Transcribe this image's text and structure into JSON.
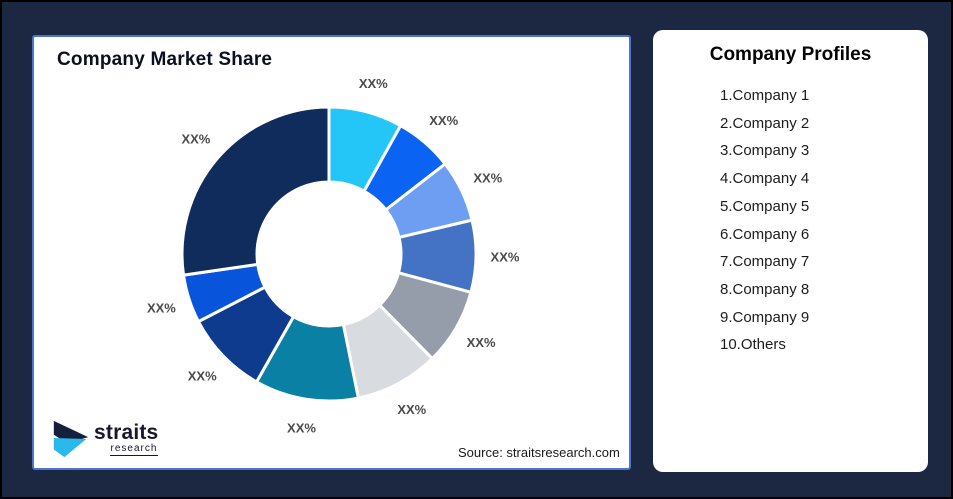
{
  "page": {
    "background_color": "#1C2742",
    "outer_border_color": "#000000"
  },
  "left_card": {
    "title": "Company Market Share",
    "border_color": "#4A74CE",
    "source_text": "Source: straitsresearch.com",
    "logo": {
      "text": "straits",
      "subtext": "research",
      "icon": "straits-arrow-icon",
      "navy_color": "#15203F",
      "cyan_color": "#29B9EA"
    }
  },
  "right_card": {
    "title": "Company Profiles",
    "items": [
      "1.Company 1",
      "2.Company 2",
      "3.Company 3",
      "4.Company 4",
      "5.Company 5",
      "6.Company 6",
      "7.Company 7",
      "8.Company 8",
      "9.Company 9",
      "10.Others"
    ]
  },
  "chart_data": {
    "type": "pie",
    "subtype": "donut",
    "title": "Company Market Share",
    "legend_position": "none",
    "labels_position": "outside",
    "label_color": "#4A4A4A",
    "start_angle_deg": 0,
    "clockwise": true,
    "inner_radius_ratio": 0.49,
    "slices": [
      {
        "label": "XX%",
        "estimated_percent": 8.1,
        "color": "#24C6F7"
      },
      {
        "label": "XX%",
        "estimated_percent": 6.4,
        "color": "#0B63F3"
      },
      {
        "label": "XX%",
        "estimated_percent": 6.8,
        "color": "#6D9EF2"
      },
      {
        "label": "XX%",
        "estimated_percent": 7.9,
        "color": "#4473C5"
      },
      {
        "label": "XX%",
        "estimated_percent": 8.4,
        "color": "#959DAA"
      },
      {
        "label": "XX%",
        "estimated_percent": 9.2,
        "color": "#D8DBE0"
      },
      {
        "label": "XX%",
        "estimated_percent": 11.4,
        "color": "#0A81A4"
      },
      {
        "label": "XX%",
        "estimated_percent": 9.2,
        "color": "#0E3B8D"
      },
      {
        "label": "XX%",
        "estimated_percent": 5.3,
        "color": "#0855DC"
      },
      {
        "label": "XX%",
        "estimated_percent": 27.3,
        "color": "#0F2C5C"
      }
    ]
  }
}
